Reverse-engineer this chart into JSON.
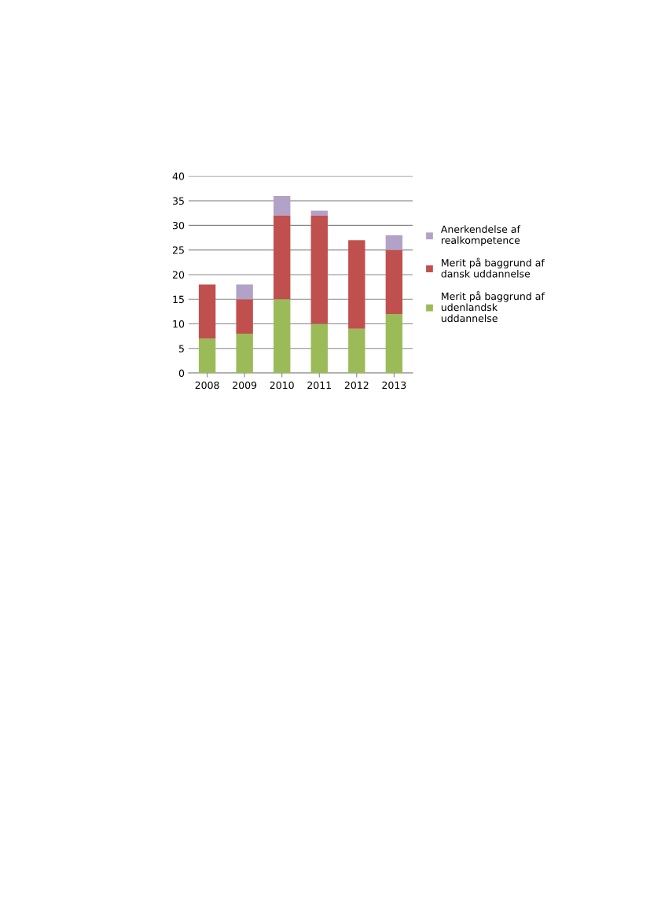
{
  "chart_data": {
    "type": "bar",
    "stacked": true,
    "categories": [
      "2008",
      "2009",
      "2010",
      "2011",
      "2012",
      "2013"
    ],
    "series": [
      {
        "name": "Merit på baggrund af udenlandsk uddannelse",
        "color": "#9bbb59",
        "values": [
          7,
          8,
          15,
          10,
          9,
          12
        ]
      },
      {
        "name": "Merit på baggrund af dansk uddannelse",
        "color": "#c0504d",
        "values": [
          11,
          7,
          17,
          22,
          18,
          13
        ]
      },
      {
        "name": "Anerkendelse af realkompetence",
        "color": "#b3a2c7",
        "values": [
          0,
          3,
          4,
          1,
          0,
          3
        ]
      }
    ],
    "ylim": [
      0,
      40
    ],
    "yticks": [
      0,
      5,
      10,
      15,
      20,
      25,
      30,
      35,
      40
    ],
    "grid": "y",
    "legend": "right"
  }
}
